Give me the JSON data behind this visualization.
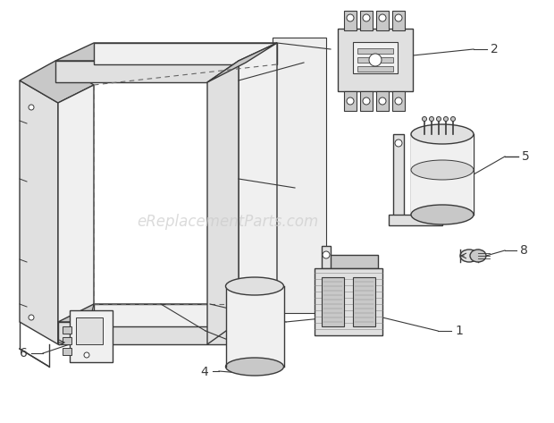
{
  "bg_color": "#ffffff",
  "watermark": "eReplacementParts.com",
  "watermark_color": "#cccccc",
  "lc": "#3a3a3a",
  "lw": 1.0,
  "face_light": "#f0f0f0",
  "face_mid": "#e0e0e0",
  "face_dark": "#c8c8c8",
  "face_darker": "#b8b8b8"
}
